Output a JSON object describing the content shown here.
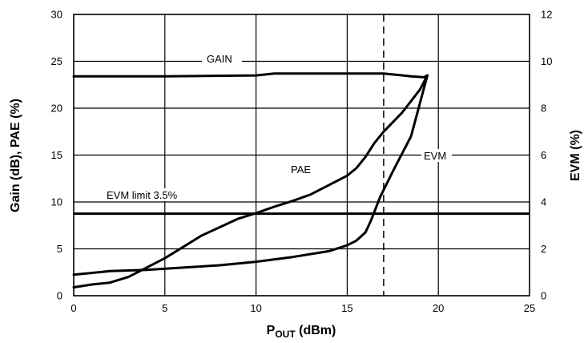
{
  "chart_data": {
    "type": "line",
    "title": "",
    "xlabel": {
      "main": "P",
      "sub": "OUT",
      "rest": " (dBm)"
    },
    "ylabel_left": "Gain (dB), PAE (%)",
    "ylabel_right": "EVM (%)",
    "xlim": [
      0,
      25
    ],
    "ylim_left": [
      0,
      30
    ],
    "ylim_right": [
      0,
      12
    ],
    "xticks": [
      "0",
      "5",
      "10",
      "15",
      "20",
      "25"
    ],
    "yticks_left": [
      "0",
      "5",
      "10",
      "15",
      "20",
      "25",
      "30"
    ],
    "yticks_right": [
      "0",
      "2",
      "4",
      "6",
      "8",
      "10",
      "12"
    ],
    "grid": true,
    "series": [
      {
        "name": "GAIN",
        "axis": "left",
        "x": [
          0,
          5,
          10,
          11,
          15,
          16,
          17,
          17.5,
          18.5,
          19.2,
          19.4
        ],
        "y": [
          23.4,
          23.4,
          23.5,
          23.7,
          23.7,
          23.7,
          23.7,
          23.6,
          23.4,
          23.3,
          23.5
        ]
      },
      {
        "name": "PAE",
        "axis": "left",
        "x": [
          0,
          1,
          2,
          3,
          4,
          5,
          6,
          7,
          8,
          9,
          10,
          11,
          12,
          13,
          14,
          15,
          15.5,
          16,
          16.5,
          17,
          18,
          19,
          19.4
        ],
        "y": [
          0.9,
          1.2,
          1.4,
          2.0,
          3.0,
          4.0,
          5.2,
          6.4,
          7.3,
          8.2,
          8.8,
          9.5,
          10.1,
          10.8,
          11.8,
          12.8,
          13.6,
          14.8,
          16.3,
          17.5,
          19.5,
          22.0,
          23.5
        ]
      },
      {
        "name": "EVM",
        "axis": "right",
        "x": [
          0,
          2,
          4,
          6,
          8,
          10,
          12,
          14,
          15,
          15.5,
          16,
          16.3,
          16.8,
          17.5,
          18.5,
          19.4
        ],
        "y": [
          0.9,
          1.05,
          1.1,
          1.2,
          1.3,
          1.45,
          1.65,
          1.9,
          2.15,
          2.35,
          2.7,
          3.2,
          4.2,
          5.3,
          6.8,
          9.4
        ]
      }
    ],
    "annotations": {
      "gain_label": "GAIN",
      "pae_label": "PAE",
      "evm_label": "EVM",
      "evm_limit_label": "EVM limit 3.5%",
      "evm_limit_value": 3.5,
      "vline_x": 17
    }
  }
}
